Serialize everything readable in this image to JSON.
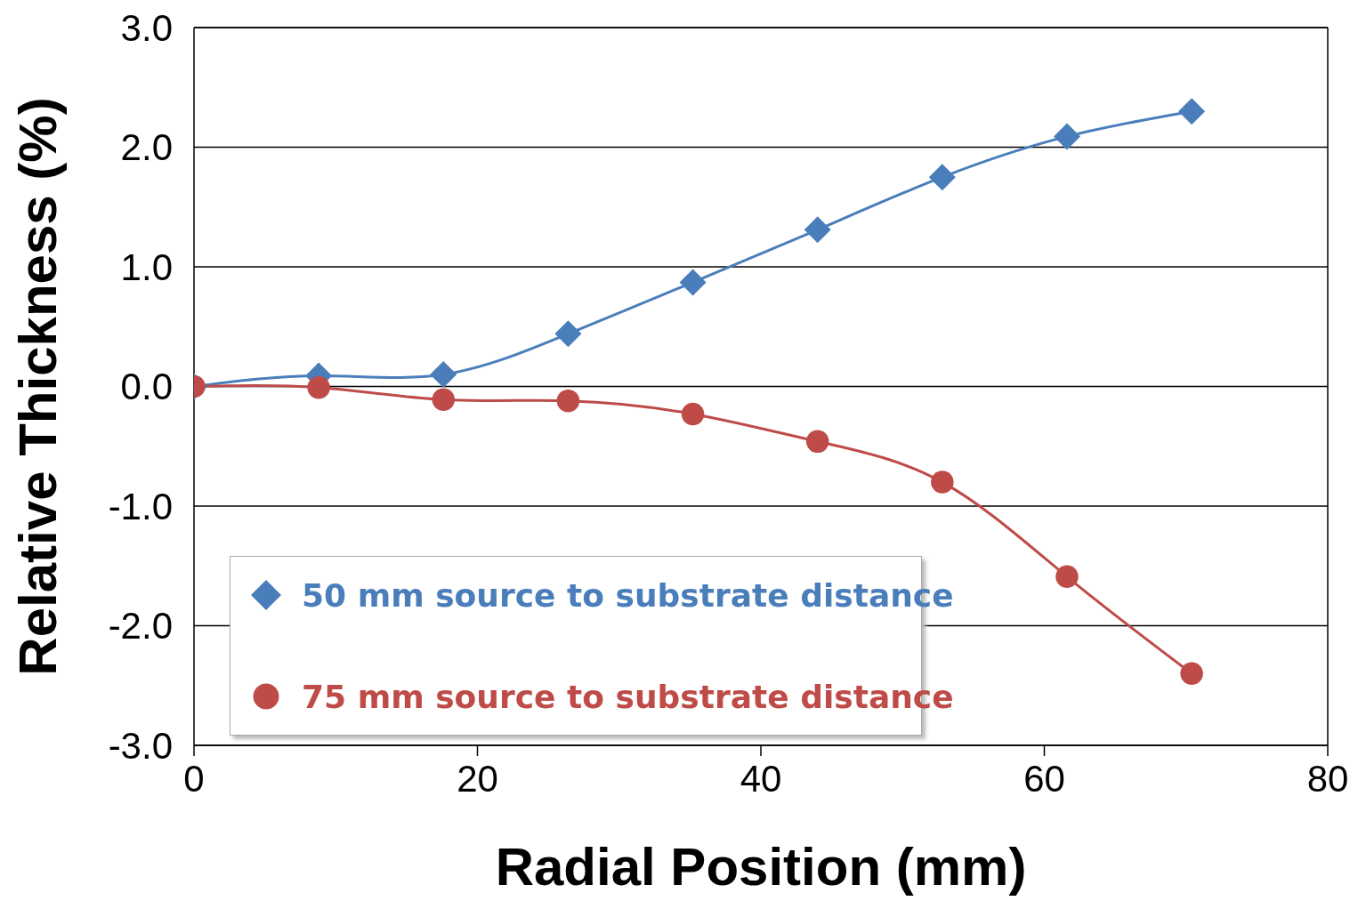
{
  "chart_data": {
    "type": "line",
    "xlabel": "Radial Position (mm)",
    "ylabel": "Relative Thickness (%)",
    "x": [
      0,
      8.8,
      17.6,
      26.4,
      35.2,
      44,
      52.8,
      61.6,
      70.4
    ],
    "series": [
      {
        "name": "50 mm source to substrate distance",
        "color": "#4a7ebb",
        "marker": "diamond",
        "values": [
          0,
          0.09,
          0.1,
          0.44,
          0.87,
          1.31,
          1.75,
          2.09,
          2.3
        ]
      },
      {
        "name": "75 mm source to substrate distance",
        "color": "#be4b48",
        "marker": "circle",
        "values": [
          0,
          -0.01,
          -0.11,
          -0.12,
          -0.23,
          -0.46,
          -0.8,
          -1.59,
          -2.4
        ]
      }
    ],
    "xlim": [
      0,
      80
    ],
    "xticks": [
      0,
      20,
      40,
      60,
      80
    ],
    "ylim": [
      -3,
      3
    ],
    "yticks": [
      {
        "value": -3,
        "label": "-3.0"
      },
      {
        "value": -2,
        "label": "-2.0"
      },
      {
        "value": -1,
        "label": "-1.0"
      },
      {
        "value": 0,
        "label": "0.0"
      },
      {
        "value": 1,
        "label": "1.0"
      },
      {
        "value": 2,
        "label": "2.0"
      },
      {
        "value": 3,
        "label": "3.0"
      }
    ],
    "grid": "y",
    "legend": "bottom left",
    "line_style": "solid"
  }
}
